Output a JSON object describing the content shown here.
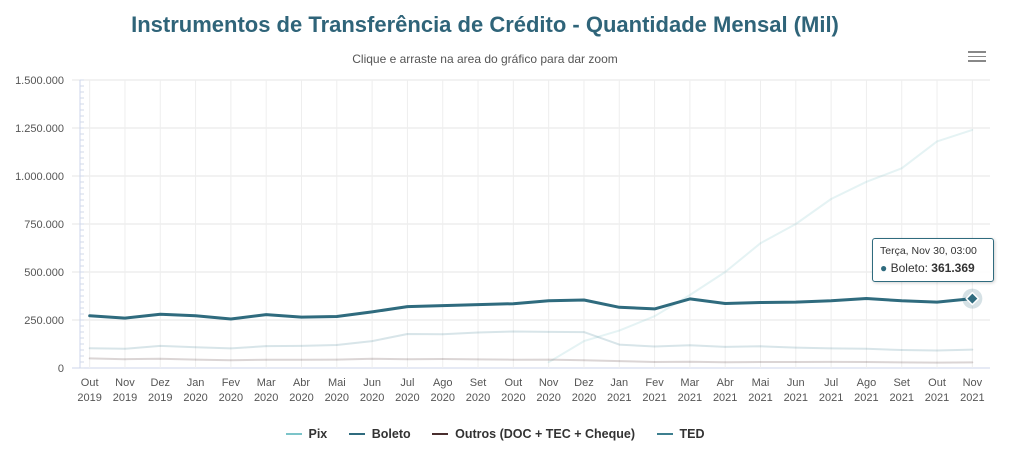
{
  "header": {
    "title": "Instrumentos de Transferência de Crédito - Quantidade Mensal (Mil)",
    "subtitle": "Clique e arraste na area do gráfico para dar zoom",
    "menu_icon": "hamburger-menu-icon"
  },
  "tooltip": {
    "date": "Terça, Nov 30, 03:00",
    "series": "Boleto",
    "value": "361.369",
    "color": "#2f6b7e"
  },
  "legend": [
    {
      "name": "Pix",
      "color": "#7cc4c9"
    },
    {
      "name": "Boleto",
      "color": "#2f6b7e"
    },
    {
      "name": "Outros (DOC + TEC + Cheque)",
      "color": "#4a2f2f"
    },
    {
      "name": "TED",
      "color": "#3d7f8f"
    }
  ],
  "chart_data": {
    "type": "line",
    "title": "Instrumentos de Transferência de Crédito - Quantidade Mensal (Mil)",
    "subtitle": "Clique e arraste na area do gráfico para dar zoom",
    "categories": [
      "Out 2019",
      "Nov 2019",
      "Dez 2019",
      "Jan 2020",
      "Fev 2020",
      "Mar 2020",
      "Abr 2020",
      "Mai 2020",
      "Jun 2020",
      "Jul 2020",
      "Ago 2020",
      "Set 2020",
      "Out 2020",
      "Nov 2020",
      "Dez 2020",
      "Jan 2021",
      "Fev 2021",
      "Mar 2021",
      "Abr 2021",
      "Mai 2021",
      "Jun 2021",
      "Jul 2021",
      "Ago 2021",
      "Set 2021",
      "Out 2021",
      "Nov 2021"
    ],
    "x_tick_top": [
      "Out",
      "Nov",
      "Dez",
      "Jan",
      "Fev",
      "Mar",
      "Abr",
      "Mai",
      "Jun",
      "Jul",
      "Ago",
      "Set",
      "Out",
      "Nov",
      "Dez",
      "Jan",
      "Fev",
      "Mar",
      "Abr",
      "Mai",
      "Jun",
      "Jul",
      "Ago",
      "Set",
      "Out",
      "Nov"
    ],
    "x_tick_bottom": [
      "2019",
      "2019",
      "2019",
      "2020",
      "2020",
      "2020",
      "2020",
      "2020",
      "2020",
      "2020",
      "2020",
      "2020",
      "2020",
      "2020",
      "2020",
      "2021",
      "2021",
      "2021",
      "2021",
      "2021",
      "2021",
      "2021",
      "2021",
      "2021",
      "2021",
      "2021"
    ],
    "y_ticks": [
      "0",
      "250.000",
      "500.000",
      "750.000",
      "1.000.000",
      "1.250.000",
      "1.500.000"
    ],
    "ylim": [
      0,
      1500000
    ],
    "grid": true,
    "legend_position": "bottom-center",
    "highlighted_series": "Boleto",
    "series": [
      {
        "name": "Pix",
        "color": "#7cc4c9",
        "values": [
          null,
          null,
          null,
          null,
          null,
          null,
          null,
          null,
          null,
          null,
          null,
          null,
          null,
          30000,
          140000,
          195000,
          270000,
          380000,
          500000,
          650000,
          750000,
          880000,
          970000,
          1040000,
          1180000,
          1240000
        ]
      },
      {
        "name": "Boleto",
        "color": "#2f6b7e",
        "values": [
          272000,
          260000,
          280000,
          272000,
          255000,
          278000,
          265000,
          268000,
          292000,
          320000,
          325000,
          330000,
          335000,
          350000,
          354000,
          316000,
          308000,
          360000,
          336000,
          341000,
          343000,
          350000,
          362000,
          350000,
          343000,
          361369
        ]
      },
      {
        "name": "Outros (DOC + TEC + Cheque)",
        "color": "#4a2f2f",
        "values": [
          50000,
          46000,
          48000,
          44000,
          40000,
          43000,
          43000,
          44000,
          48000,
          46000,
          47000,
          45000,
          43000,
          44000,
          40000,
          36000,
          31000,
          33000,
          30000,
          31000,
          31000,
          32000,
          31000,
          29000,
          28000,
          29000
        ]
      },
      {
        "name": "TED",
        "color": "#3d7f8f",
        "values": [
          103000,
          100000,
          115000,
          108000,
          102000,
          114000,
          115000,
          120000,
          140000,
          177000,
          176000,
          185000,
          190000,
          188000,
          187000,
          122000,
          112000,
          118000,
          110000,
          113000,
          106000,
          102000,
          100000,
          94000,
          91000,
          96000
        ]
      }
    ]
  }
}
